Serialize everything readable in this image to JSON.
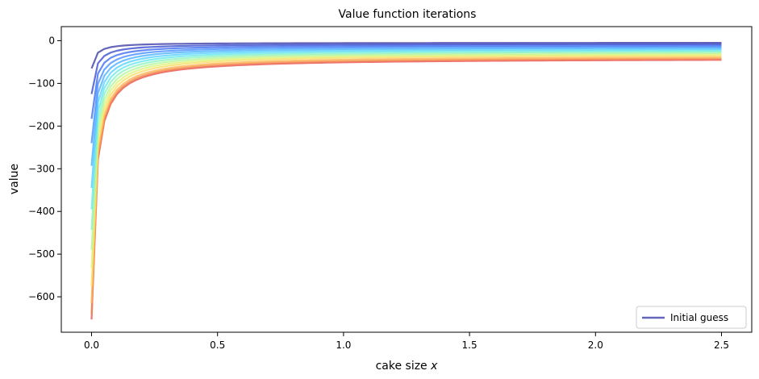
{
  "chart_data": {
    "type": "line",
    "title": "Value function iterations",
    "xlabel_text": "cake size ",
    "xlabel_var": "x",
    "ylabel": "value",
    "xlim": [
      -0.12,
      2.62
    ],
    "ylim": [
      -683,
      33
    ],
    "x_ticks": [
      0.0,
      0.5,
      1.0,
      1.5,
      2.0,
      2.5
    ],
    "x_tick_labels": [
      "0.0",
      "0.5",
      "1.0",
      "1.5",
      "2.0",
      "2.5"
    ],
    "y_ticks": [
      0,
      -100,
      -200,
      -300,
      -400,
      -500,
      -600
    ],
    "y_tick_labels": [
      "0",
      "−100",
      "−200",
      "−300",
      "−400",
      "−500",
      "−600"
    ],
    "grid": false,
    "legend_position": "bottom-right",
    "legend": [
      {
        "label": "Initial guess",
        "color": "#3e3ea8"
      }
    ],
    "x_grid": [
      0.0001,
      0.0254,
      0.0506,
      0.0758,
      0.1011,
      0.1263,
      0.1516,
      0.1768,
      0.2021,
      0.2273,
      0.2526,
      0.2778,
      0.3031,
      0.3283,
      0.3536,
      0.3788,
      0.404,
      0.4293,
      0.4545,
      0.4798,
      0.505,
      0.5303,
      0.5555,
      0.5808,
      0.606,
      0.6313,
      0.6565,
      0.6818,
      0.707,
      0.7322,
      0.7575,
      0.7827,
      0.808,
      0.8332,
      0.8585,
      0.8837,
      0.909,
      0.9342,
      0.9594,
      0.9847,
      1.0099,
      1.0352,
      1.0604,
      1.0857,
      1.1109,
      1.1362,
      1.1614,
      1.1867,
      1.2119,
      1.2371,
      1.2624,
      1.2876,
      1.3129,
      1.3381,
      1.3634,
      1.3886,
      1.4139,
      1.4391,
      1.4643,
      1.4896,
      1.5148,
      1.5401,
      1.5653,
      1.5906,
      1.6158,
      1.6411,
      1.6663,
      1.6916,
      1.7168,
      1.742,
      1.7673,
      1.7925,
      1.8178,
      1.843,
      1.8683,
      1.8935,
      1.9188,
      1.944,
      1.9692,
      1.9945,
      2.0197,
      2.045,
      2.0702,
      2.0955,
      2.1207,
      2.146,
      2.1712,
      2.1965,
      2.2217,
      2.2469,
      2.2722,
      2.2974,
      2.3227,
      2.3479,
      2.3732,
      2.3984,
      2.4237,
      2.4489,
      2.4741,
      2.4994,
      2.5
    ],
    "series": [
      {
        "color": "#3e3ea8",
        "y0": -65,
        "y_end": -5
      },
      {
        "color": "#3c4fcf",
        "y0": -125,
        "y_end": -8
      },
      {
        "color": "#3f6ef0",
        "y0": -183,
        "y_end": -11
      },
      {
        "color": "#4890ff",
        "y0": -240,
        "y_end": -14
      },
      {
        "color": "#4fb1ff",
        "y0": -293,
        "y_end": -17
      },
      {
        "color": "#59d1ff",
        "y0": -345,
        "y_end": -20
      },
      {
        "color": "#6de8e8",
        "y0": -395,
        "y_end": -23
      },
      {
        "color": "#8ef2c2",
        "y0": -443,
        "y_end": -26
      },
      {
        "color": "#b5f59b",
        "y0": -490,
        "y_end": -29
      },
      {
        "color": "#dcf27a",
        "y0": -533,
        "y_end": -32
      },
      {
        "color": "#f7de62",
        "y0": -575,
        "y_end": -35
      },
      {
        "color": "#fcb452",
        "y0": -615,
        "y_end": -39
      },
      {
        "color": "#f3864a",
        "y0": -640,
        "y_end": -42
      },
      {
        "color": "#e8524a",
        "y0": -653,
        "y_end": -45
      }
    ],
    "curve_shape": {
      "k": 0.016
    }
  }
}
